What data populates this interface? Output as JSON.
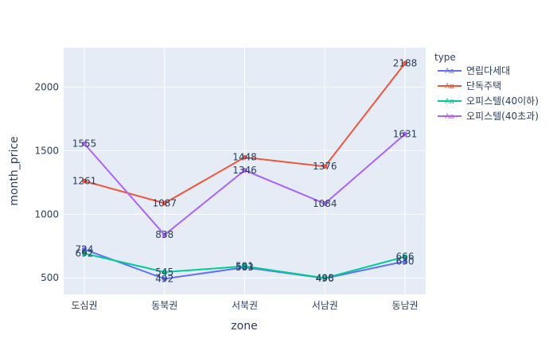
{
  "chart_data": {
    "type": "line",
    "xlabel": "zone",
    "ylabel": "month_price",
    "categories": [
      "도심권",
      "동북권",
      "서북권",
      "서남권",
      "동남권"
    ],
    "ylim": [
      370,
      2310
    ],
    "yticks": [
      500,
      1000,
      1500,
      2000
    ],
    "grid": true,
    "legend": {
      "title": "type",
      "position": "right",
      "marker_text": "Aa"
    },
    "series": [
      {
        "name": "연립다세대",
        "color": "#636efa",
        "values": [
          724,
          492,
          583,
          496,
          630
        ]
      },
      {
        "name": "단독주택",
        "color": "#EF553B",
        "values": [
          1261,
          1087,
          1448,
          1376,
          2188
        ]
      },
      {
        "name": "오피스텔(40이하)",
        "color": "#00cc96",
        "values": [
          692,
          545,
          591,
          498,
          666
        ]
      },
      {
        "name": "오피스텔(40초과)",
        "color": "#ab63fa",
        "values": [
          1555,
          838,
          1346,
          1084,
          1631
        ]
      }
    ]
  }
}
